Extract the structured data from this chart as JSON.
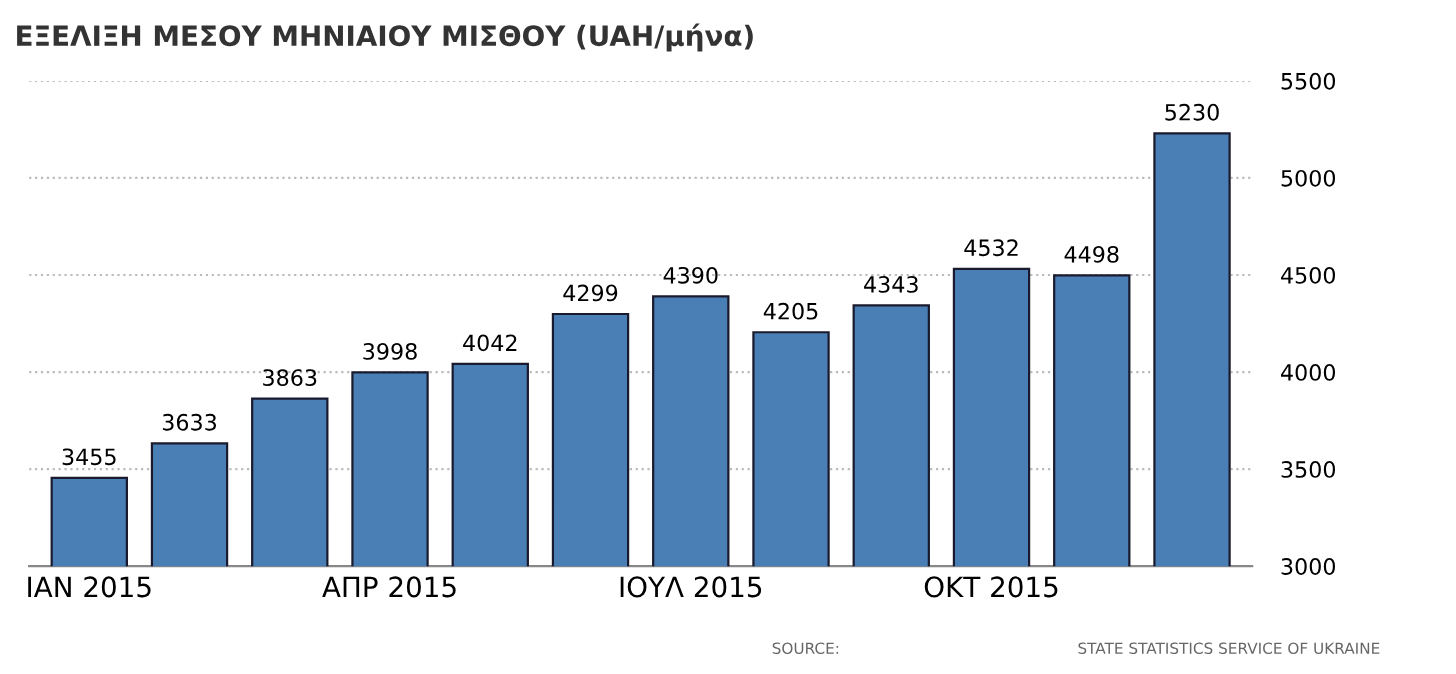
{
  "chart_data": {
    "type": "bar",
    "title": "ΕΞΕΛΙΞΗ ΜΕΣΟΥ ΜΗΝΙΑΙΟΥ ΜΙΣΘΟΥ (UAH/μήνα)",
    "categories": [
      "ΙΑΝ 2015",
      null,
      null,
      "ΑΠΡ 2015",
      null,
      null,
      "ΙΟΥΛ 2015",
      null,
      null,
      "ΟΚΤ 2015",
      null,
      null
    ],
    "values": [
      3455,
      3633,
      3863,
      3998,
      4042,
      4299,
      4390,
      4205,
      4343,
      4532,
      4498,
      5230
    ],
    "color": "#4a7fb5",
    "ylim": [
      3000,
      5500
    ],
    "yticks": [
      3000,
      3500,
      4000,
      4500,
      5000,
      5500
    ],
    "grid": "y",
    "data_labels": true,
    "annotations": [
      "SOURCE:",
      "STATE STATISTICS SERVICE OF UKRAINE"
    ]
  }
}
